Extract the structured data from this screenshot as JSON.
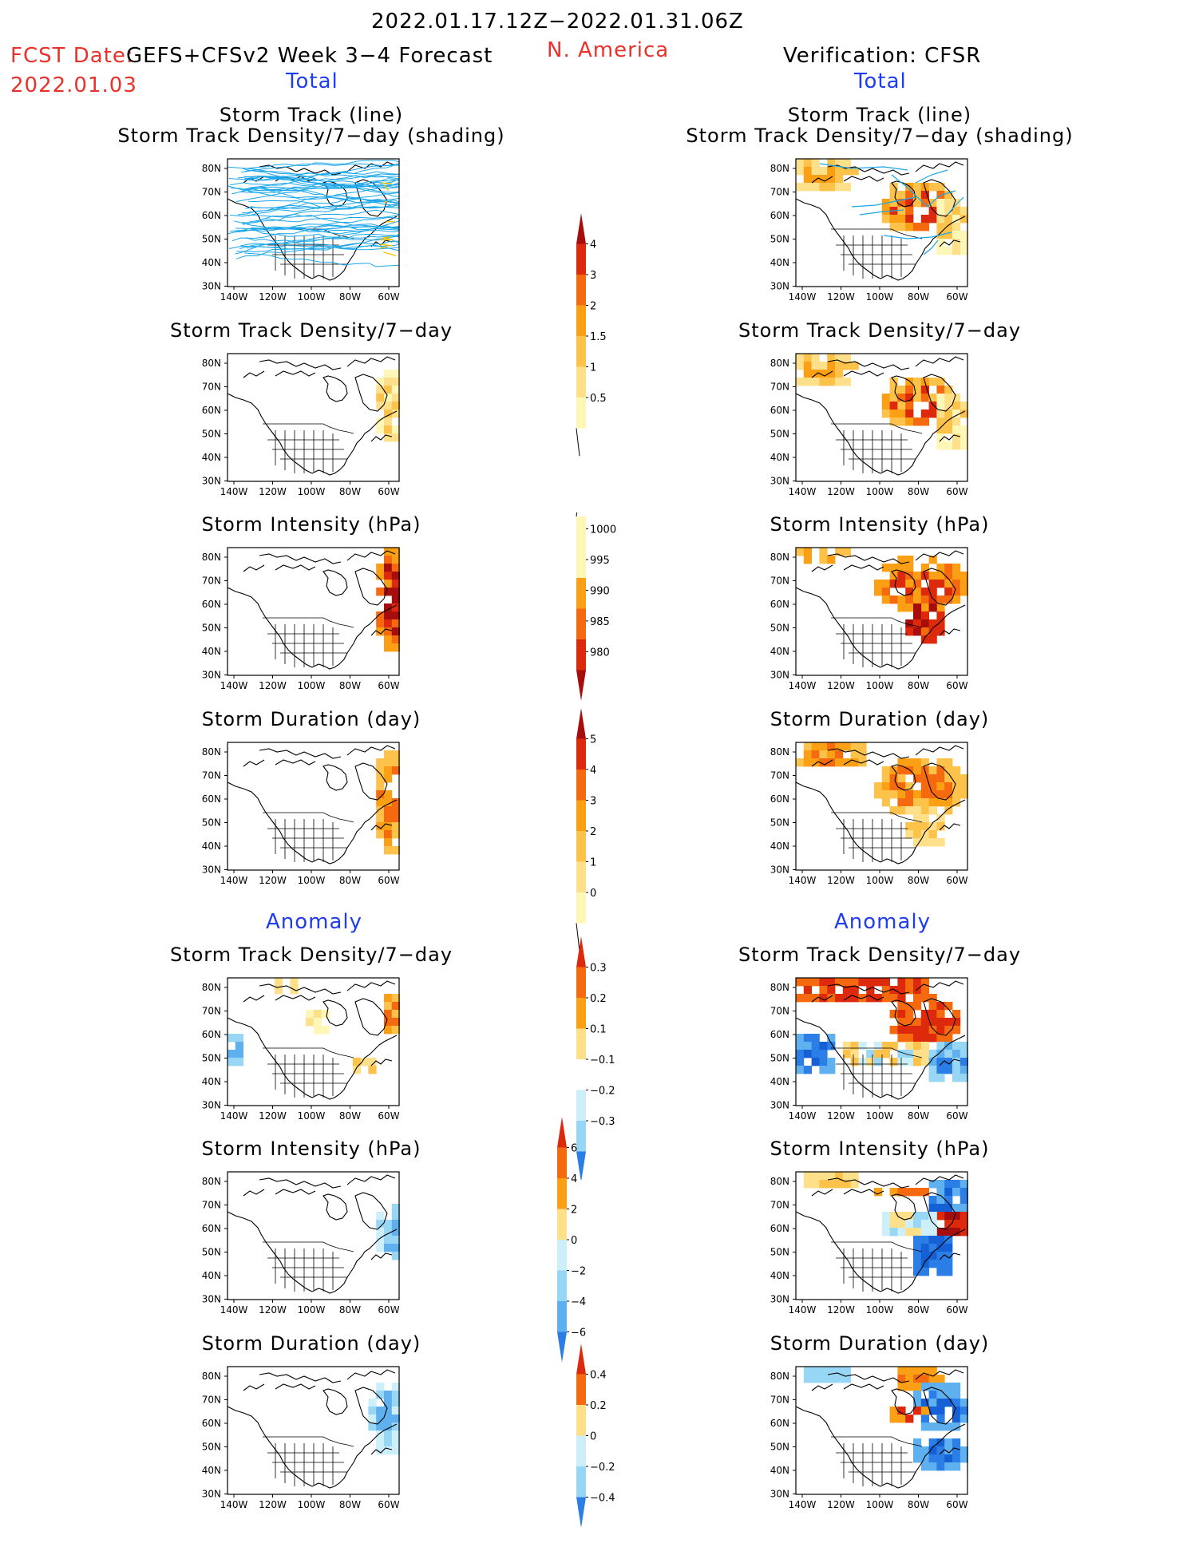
{
  "header": {
    "period": "2022.01.17.12Z−2022.01.31.06Z",
    "fcst_label": "FCST Date:",
    "model_label": "GEFS+CFSv2 Week 3−4 Forecast",
    "region": "N. America",
    "verification": "Verification: CFSR",
    "fcst_date": "2022.01.03"
  },
  "sections": {
    "total_left": "Total",
    "total_right": "Total",
    "anomaly_left": "Anomaly",
    "anomaly_right": "Anomaly"
  },
  "titles": {
    "track_line": "Storm Track (line)",
    "track_shading": "Storm Track Density/7−day (shading)",
    "density": "Storm Track Density/7−day",
    "intensity": "Storm Intensity (hPa)",
    "duration": "Storm Duration (day)"
  },
  "axes": {
    "lat_labels": [
      "80N",
      "70N",
      "60N",
      "50N",
      "40N",
      "30N"
    ],
    "lon_labels": [
      "140W",
      "120W",
      "100W",
      "80W",
      "60W"
    ]
  },
  "colorbars": {
    "density_total": [
      "4",
      "3",
      "2",
      "1.5",
      "1",
      "0.5"
    ],
    "intensity_total": [
      "1000",
      "995",
      "990",
      "985",
      "980"
    ],
    "duration_total": [
      "5",
      "4",
      "3",
      "2",
      "1",
      "0"
    ],
    "density_anom": [
      "0.3",
      "0.2",
      "0.1",
      "−0.1",
      "−0.2",
      "−0.3"
    ],
    "intensity_anom": [
      "6",
      "4",
      "2",
      "0",
      "−2",
      "−4",
      "−6"
    ],
    "duration_anom": [
      "0.4",
      "0.2",
      "0",
      "−0.2",
      "−0.4"
    ]
  },
  "palette": {
    "warm": [
      "#fff7b8",
      "#ffe08a",
      "#fcc24a",
      "#fb9f15",
      "#f56a0f",
      "#dd2a0c",
      "#a80d0d"
    ],
    "cool": [
      "#cdeffa",
      "#98d6f6",
      "#5fb0ef",
      "#2a7ee6",
      "#1460d4"
    ],
    "track_blue": "#1aa6e8",
    "header_red": "#e8322b",
    "header_blue": "#1f3cf0"
  }
}
